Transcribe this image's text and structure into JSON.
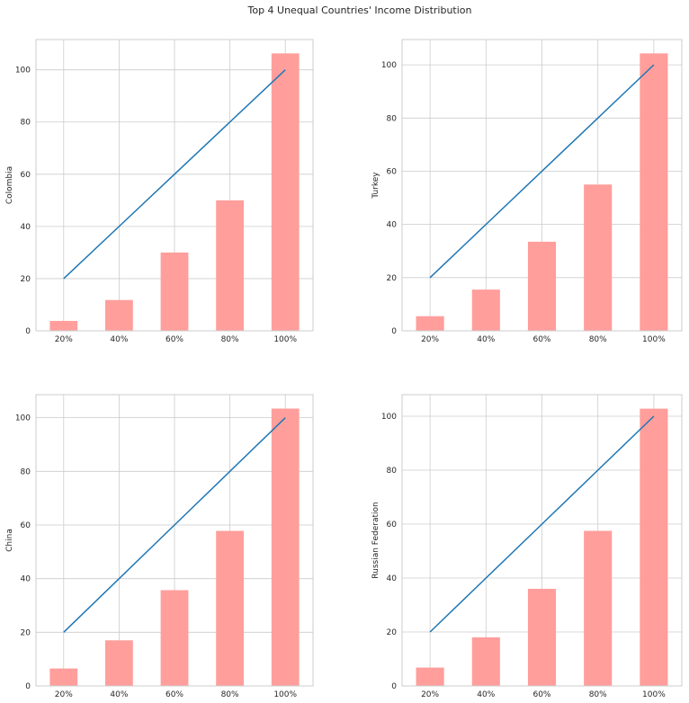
{
  "figure": {
    "suptitle": "Top 4 Unequal Countries' Income Distribution"
  },
  "style": {
    "bar_color": "#ff9e9b",
    "line_color": "#1f77b4",
    "grid_color": "#cccccc",
    "axes_edge_color": "#cccccc",
    "background": "#ffffff"
  },
  "chart_data": [
    {
      "type": "bar",
      "ylabel": "Colombia",
      "categories": [
        "20%",
        "40%",
        "60%",
        "80%",
        "100%"
      ],
      "values": [
        3.8,
        11.8,
        30.0,
        50.0,
        106.3
      ],
      "line_values": [
        20,
        40,
        60,
        80,
        100
      ],
      "ylim": [
        0,
        111.6
      ],
      "yticks": [
        0,
        20,
        40,
        60,
        80,
        100
      ],
      "grid": true
    },
    {
      "type": "bar",
      "ylabel": "Turkey",
      "categories": [
        "20%",
        "40%",
        "60%",
        "80%",
        "100%"
      ],
      "values": [
        5.5,
        15.5,
        33.5,
        55.0,
        104.3
      ],
      "line_values": [
        20,
        40,
        60,
        80,
        100
      ],
      "ylim": [
        0,
        109.5
      ],
      "yticks": [
        0,
        20,
        40,
        60,
        80,
        100
      ],
      "grid": true
    },
    {
      "type": "bar",
      "ylabel": "China",
      "categories": [
        "20%",
        "40%",
        "60%",
        "80%",
        "100%"
      ],
      "values": [
        6.5,
        17.0,
        35.7,
        57.8,
        103.4
      ],
      "line_values": [
        20,
        40,
        60,
        80,
        100
      ],
      "ylim": [
        0,
        108.6
      ],
      "yticks": [
        0,
        20,
        40,
        60,
        80,
        100
      ],
      "grid": true
    },
    {
      "type": "bar",
      "ylabel": "Russian Federation",
      "categories": [
        "20%",
        "40%",
        "60%",
        "80%",
        "100%"
      ],
      "values": [
        6.8,
        18.0,
        36.0,
        57.5,
        102.8
      ],
      "line_values": [
        20,
        40,
        60,
        80,
        100
      ],
      "ylim": [
        0,
        108.0
      ],
      "yticks": [
        0,
        20,
        40,
        60,
        80,
        100
      ],
      "grid": true
    }
  ]
}
